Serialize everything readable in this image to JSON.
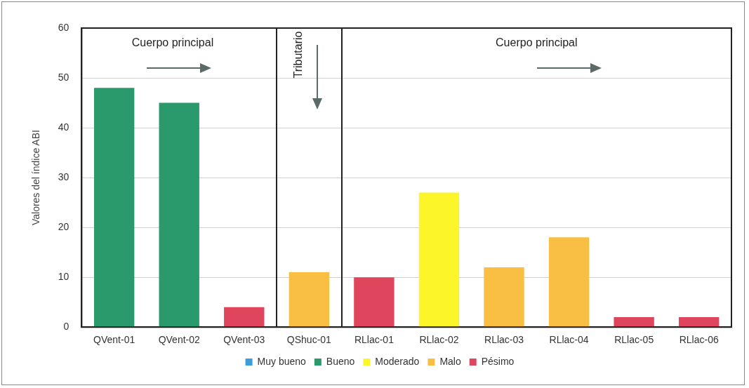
{
  "chart_data": {
    "type": "bar",
    "ylabel": "Valores del índice ABI",
    "categories": [
      "QVent-01",
      "QVent-02",
      "QVent-03",
      "QShuc-01",
      "RLlac-01",
      "RLlac-02",
      "RLlac-03",
      "RLlac-04",
      "RLlac-05",
      "RLlac-06"
    ],
    "series": [
      {
        "name": "Muy bueno",
        "color": "#3a9fd8",
        "values": [
          null,
          null,
          null,
          null,
          null,
          null,
          null,
          null,
          null,
          null
        ]
      },
      {
        "name": "Bueno",
        "color": "#2a9a6c",
        "values": [
          48,
          45,
          null,
          null,
          null,
          null,
          null,
          null,
          null,
          null
        ]
      },
      {
        "name": "Moderado",
        "color": "#fcf52a",
        "values": [
          null,
          null,
          null,
          null,
          null,
          27,
          null,
          null,
          null,
          null
        ]
      },
      {
        "name": "Malo",
        "color": "#f9bf45",
        "values": [
          null,
          null,
          null,
          11,
          null,
          null,
          12,
          18,
          null,
          null
        ]
      },
      {
        "name": "Pésimo",
        "color": "#e0455e",
        "values": [
          null,
          null,
          4,
          null,
          10,
          null,
          null,
          null,
          2,
          2
        ]
      }
    ],
    "stacked": true,
    "ylim": [
      0,
      60
    ],
    "yticks": [
      0,
      10,
      20,
      30,
      40,
      50,
      60
    ],
    "grid": "y",
    "legend": "bottom",
    "annotations": [
      "Cuerpo principal",
      "Tributario",
      "Cuerpo principal"
    ]
  }
}
